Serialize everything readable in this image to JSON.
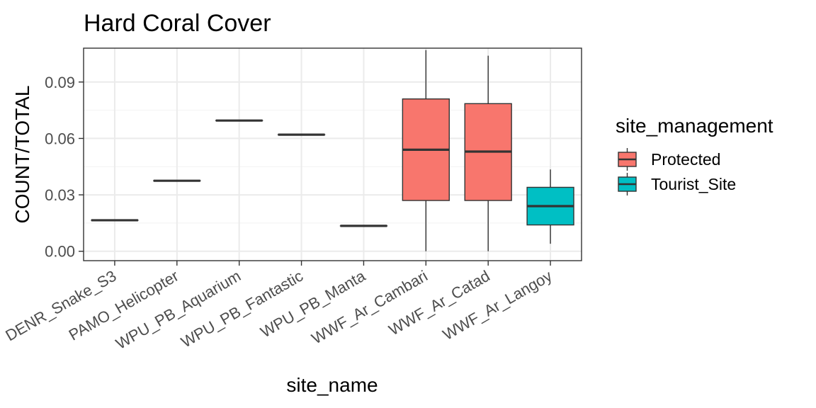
{
  "chart_data": {
    "type": "boxplot",
    "title": "Hard Coral Cover",
    "xlabel": "site_name",
    "ylabel": "COUNT/TOTAL",
    "ylim": [
      -0.005,
      0.108
    ],
    "y_ticks": [
      0.0,
      0.03,
      0.06,
      0.09
    ],
    "y_tick_labels": [
      "0.00",
      "0.03",
      "0.06",
      "0.09"
    ],
    "grid": true,
    "legend": {
      "title": "site_management",
      "position": "right",
      "entries": [
        {
          "label": "Protected",
          "color": "#F8766D"
        },
        {
          "label": "Tourist_Site",
          "color": "#00BFC4"
        }
      ]
    },
    "categories": [
      "DENR_Snake_S3",
      "PAMO_Helicopter",
      "WPU_PB_Aquarium",
      "WPU_PB_Fantastic",
      "WPU_PB_Manta",
      "WWF_Ar_Cambari",
      "WWF_Ar_Catad",
      "WWF_Ar_Langoy"
    ],
    "boxes": [
      {
        "site": "DENR_Snake_S3",
        "group": "Protected",
        "min": 0.0165,
        "q1": 0.0165,
        "median": 0.0165,
        "q3": 0.0165,
        "max": 0.0165
      },
      {
        "site": "PAMO_Helicopter",
        "group": "Protected",
        "min": 0.0375,
        "q1": 0.0375,
        "median": 0.0375,
        "q3": 0.0375,
        "max": 0.0375
      },
      {
        "site": "WPU_PB_Aquarium",
        "group": "Protected",
        "min": 0.0695,
        "q1": 0.0695,
        "median": 0.0695,
        "q3": 0.0695,
        "max": 0.0695
      },
      {
        "site": "WPU_PB_Fantastic",
        "group": "Protected",
        "min": 0.062,
        "q1": 0.062,
        "median": 0.062,
        "q3": 0.062,
        "max": 0.062
      },
      {
        "site": "WPU_PB_Manta",
        "group": "Protected",
        "min": 0.0135,
        "q1": 0.0135,
        "median": 0.0135,
        "q3": 0.0135,
        "max": 0.0135
      },
      {
        "site": "WWF_Ar_Cambari",
        "group": "Protected",
        "min": 0.0,
        "q1": 0.027,
        "median": 0.054,
        "q3": 0.081,
        "max": 0.107
      },
      {
        "site": "WWF_Ar_Catad",
        "group": "Protected",
        "min": 0.0,
        "q1": 0.027,
        "median": 0.053,
        "q3": 0.0785,
        "max": 0.104
      },
      {
        "site": "WWF_Ar_Langoy",
        "group": "Tourist_Site",
        "min": 0.004,
        "q1": 0.014,
        "median": 0.024,
        "q3": 0.034,
        "max": 0.0435
      }
    ]
  }
}
